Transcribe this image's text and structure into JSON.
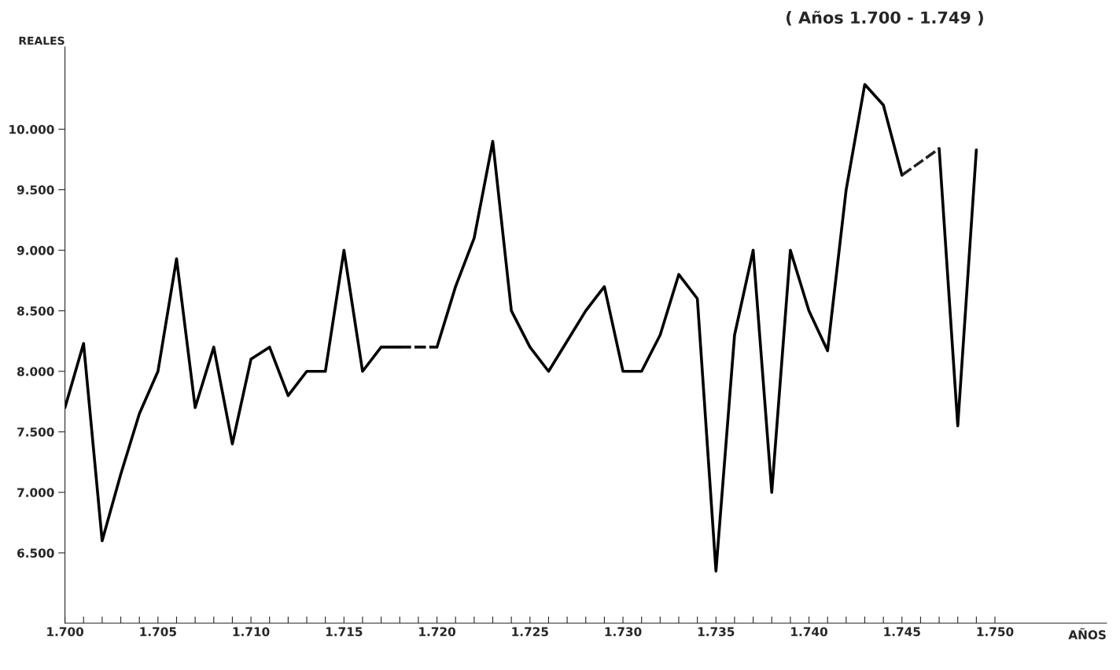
{
  "chart_data": {
    "type": "line",
    "subtitle": "( Años 1.700 - 1.749 )",
    "xlabel": "AÑOS",
    "ylabel": "REALES",
    "xlim": [
      1700,
      1756
    ],
    "ylim": [
      5920,
      10680
    ],
    "xticks": [
      {
        "value": 1700,
        "label": "1.700"
      },
      {
        "value": 1701,
        "label": null
      },
      {
        "value": 1702,
        "label": null
      },
      {
        "value": 1703,
        "label": null
      },
      {
        "value": 1704,
        "label": null
      },
      {
        "value": 1705,
        "label": "1.705"
      },
      {
        "value": 1706,
        "label": null
      },
      {
        "value": 1707,
        "label": null
      },
      {
        "value": 1708,
        "label": null
      },
      {
        "value": 1709,
        "label": null
      },
      {
        "value": 1710,
        "label": "1.710"
      },
      {
        "value": 1711,
        "label": null
      },
      {
        "value": 1712,
        "label": null
      },
      {
        "value": 1713,
        "label": null
      },
      {
        "value": 1714,
        "label": null
      },
      {
        "value": 1715,
        "label": "1.715"
      },
      {
        "value": 1716,
        "label": null
      },
      {
        "value": 1717,
        "label": null
      },
      {
        "value": 1718,
        "label": null
      },
      {
        "value": 1719,
        "label": null
      },
      {
        "value": 1720,
        "label": "1.720"
      },
      {
        "value": 1721,
        "label": null
      },
      {
        "value": 1722,
        "label": null
      },
      {
        "value": 1723,
        "label": null
      },
      {
        "value": 1724,
        "label": null
      },
      {
        "value": 1725,
        "label": "1.725"
      },
      {
        "value": 1726,
        "label": null
      },
      {
        "value": 1727,
        "label": null
      },
      {
        "value": 1728,
        "label": null
      },
      {
        "value": 1729,
        "label": null
      },
      {
        "value": 1730,
        "label": "1.730"
      },
      {
        "value": 1731,
        "label": null
      },
      {
        "value": 1732,
        "label": null
      },
      {
        "value": 1733,
        "label": null
      },
      {
        "value": 1734,
        "label": null
      },
      {
        "value": 1735,
        "label": "1.735"
      },
      {
        "value": 1736,
        "label": null
      },
      {
        "value": 1737,
        "label": null
      },
      {
        "value": 1738,
        "label": null
      },
      {
        "value": 1739,
        "label": null
      },
      {
        "value": 1740,
        "label": "1.740"
      },
      {
        "value": 1741,
        "label": null
      },
      {
        "value": 1742,
        "label": null
      },
      {
        "value": 1743,
        "label": null
      },
      {
        "value": 1744,
        "label": null
      },
      {
        "value": 1745,
        "label": "1.745"
      },
      {
        "value": 1746,
        "label": null
      },
      {
        "value": 1747,
        "label": null
      },
      {
        "value": 1748,
        "label": null
      },
      {
        "value": 1749,
        "label": null
      },
      {
        "value": 1750,
        "label": "1.750"
      }
    ],
    "yticks": [
      {
        "value": 6500,
        "label": "6.500"
      },
      {
        "value": 7000,
        "label": "7.000"
      },
      {
        "value": 7500,
        "label": "7.500"
      },
      {
        "value": 8000,
        "label": "8.000"
      },
      {
        "value": 8500,
        "label": "8.500"
      },
      {
        "value": 9000,
        "label": "9.000"
      },
      {
        "value": 9500,
        "label": "9.500"
      },
      {
        "value": 10000,
        "label": "10.000"
      }
    ],
    "grid": false,
    "marker": "none",
    "series": [
      {
        "color": "#000000",
        "line_style": "solid",
        "x": [
          1700,
          1701,
          1702,
          1703,
          1704,
          1705,
          1706,
          1707,
          1708,
          1709,
          1710,
          1711,
          1712,
          1713,
          1714,
          1715,
          1716,
          1717,
          1718,
          1719,
          1720,
          1721,
          1722,
          1723,
          1724,
          1725,
          1726,
          1727,
          1728,
          1729,
          1730,
          1731,
          1732,
          1733,
          1734,
          1735,
          1736,
          1737,
          1738,
          1739,
          1740,
          1741,
          1742,
          1743,
          1744,
          1745,
          1746,
          1747,
          1748,
          1749
        ],
        "values": [
          7700,
          8230,
          6600,
          7150,
          7650,
          8000,
          8930,
          7700,
          8200,
          7400,
          8100,
          8200,
          7800,
          8000,
          8000,
          9000,
          8000,
          8200,
          8200,
          null,
          8200,
          8700,
          9100,
          9900,
          8500,
          8200,
          8000,
          8250,
          8500,
          8700,
          8000,
          8000,
          8300,
          8800,
          8600,
          6350,
          8300,
          9000,
          7000,
          9000,
          8500,
          8170,
          9500,
          10370,
          10200,
          9620,
          null,
          9840,
          7550,
          9830
        ]
      },
      {
        "color": "#111111",
        "line_style": "dashed",
        "x": [
          1718,
          1719,
          1720
        ],
        "values": [
          8200,
          8200,
          8200
        ]
      },
      {
        "color": "#222222",
        "line_style": "dashed",
        "x": [
          1745,
          1746,
          1747
        ],
        "values": [
          9620,
          9730,
          9840
        ]
      }
    ]
  }
}
